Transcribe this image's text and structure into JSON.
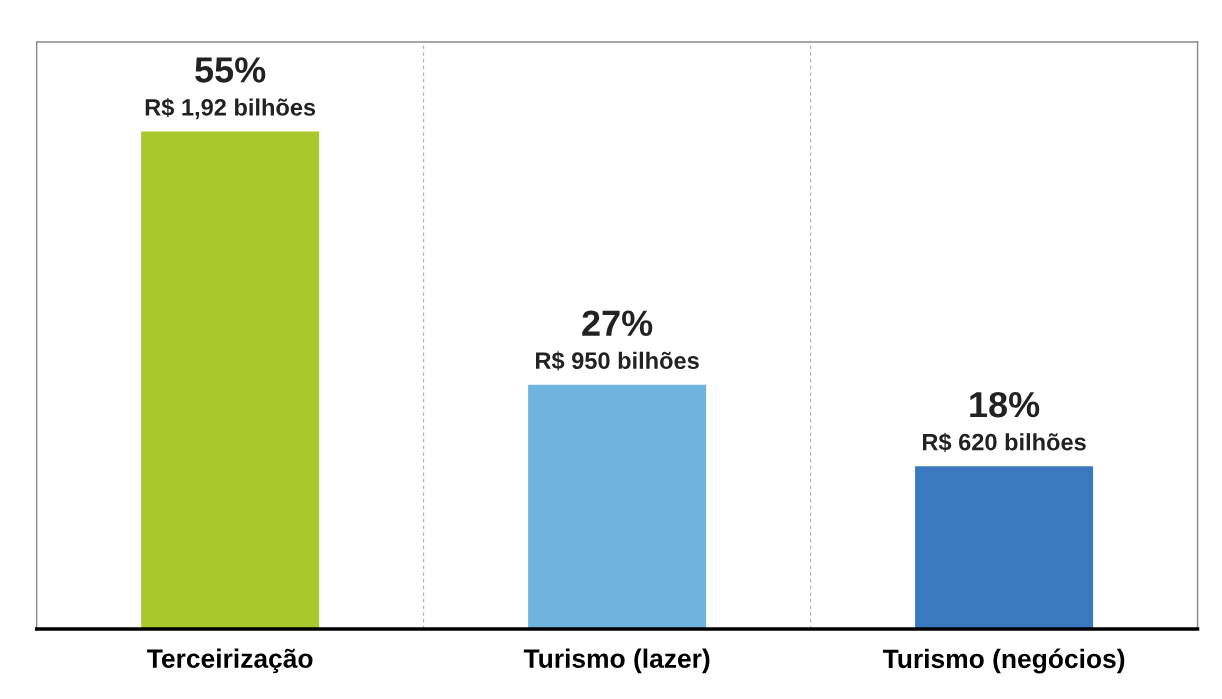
{
  "chart_data": {
    "type": "bar",
    "categories": [
      "Terceirização",
      "Turismo (lazer)",
      "Turismo (negócios)"
    ],
    "values": [
      55,
      27,
      18
    ],
    "colors": [
      "#a8c82c",
      "#6fb4de",
      "#3a78c0"
    ],
    "value_labels": [
      "55%\nR$ 1,92 bilhões",
      "27%\nR$ 950 bilhões",
      "18%\nR$ 620 bilhões"
    ]
  }
}
